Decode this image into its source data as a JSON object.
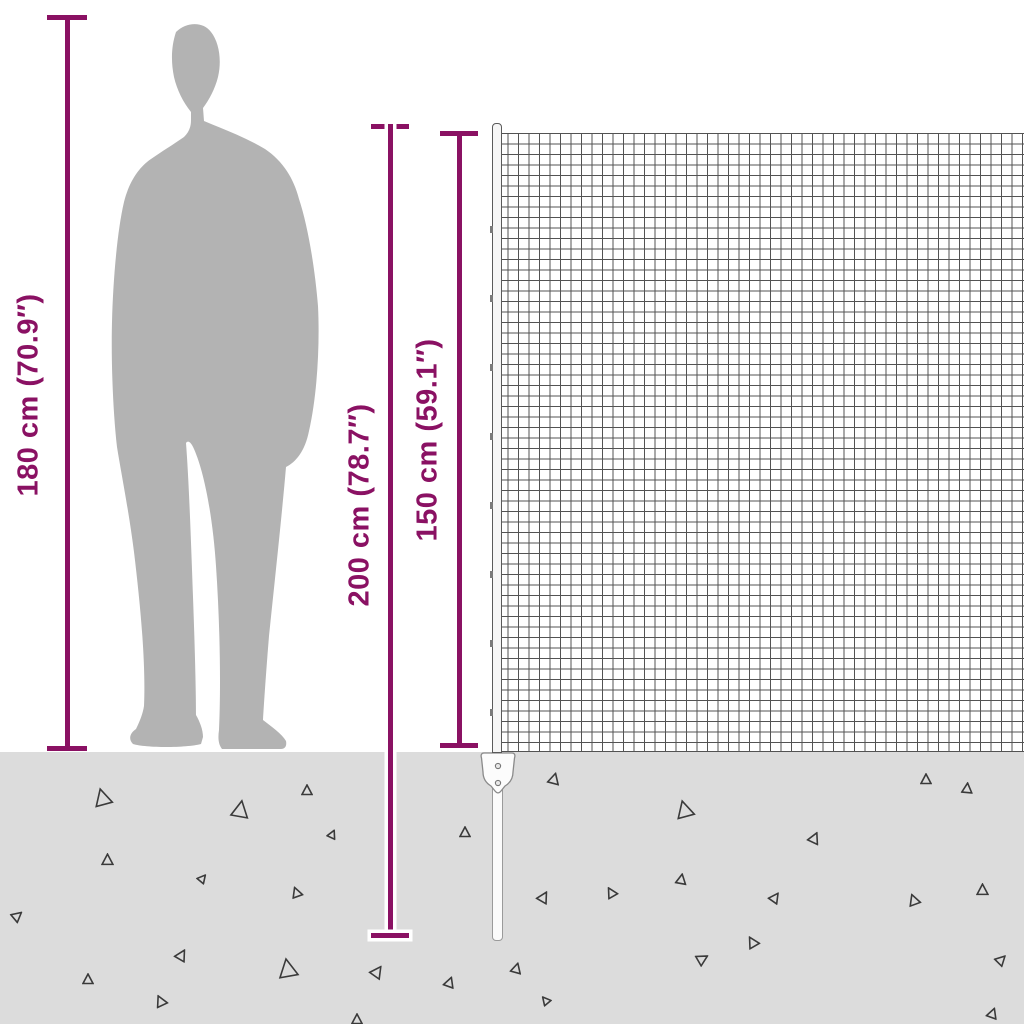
{
  "illustration": {
    "description_labels": {
      "person_height": "180 cm (70.9″)",
      "post_total_height": "200 cm (78.7″)",
      "fence_height_above_ground": "150 cm (59.1″)"
    }
  },
  "measurements": [
    {
      "id": "person-height",
      "label": "180 cm (70.9″)"
    },
    {
      "id": "post-total-height",
      "label": "200 cm (78.7″)"
    },
    {
      "id": "fence-height",
      "label": "150 cm (59.1″)"
    }
  ],
  "colors": {
    "accent": "#8a1163",
    "silhouette": "#b3b3b3",
    "ground": "#dcdcdc",
    "mesh_line": "#2e2e2e",
    "debris": "#3a3a3a"
  },
  "icons": {
    "person": "standing-man-silhouette",
    "fence": "square-mesh-net",
    "debris": "scattered-triangle-gravel-marks"
  },
  "ground": {
    "triangles": [
      [
        103,
        797,
        20,
        -15
      ],
      [
        240,
        809,
        20,
        10
      ],
      [
        307,
        789,
        12,
        0
      ],
      [
        332,
        831,
        10,
        25
      ],
      [
        107,
        859,
        13,
        0
      ],
      [
        202,
        875,
        10,
        40
      ],
      [
        297,
        891,
        12,
        -20
      ],
      [
        16,
        914,
        12,
        50
      ],
      [
        180,
        954,
        13,
        30
      ],
      [
        88,
        978,
        12,
        0
      ],
      [
        288,
        968,
        22,
        -10
      ],
      [
        376,
        971,
        14,
        35
      ],
      [
        161,
        1000,
        13,
        -25
      ],
      [
        449,
        981,
        12,
        20
      ],
      [
        357,
        1018,
        12,
        0
      ],
      [
        553,
        778,
        13,
        15
      ],
      [
        465,
        831,
        12,
        0
      ],
      [
        542,
        896,
        13,
        30
      ],
      [
        612,
        891,
        12,
        -30
      ],
      [
        685,
        809,
        20,
        -15
      ],
      [
        681,
        878,
        12,
        10
      ],
      [
        774,
        896,
        12,
        35
      ],
      [
        813,
        837,
        13,
        25
      ],
      [
        926,
        778,
        12,
        0
      ],
      [
        967,
        787,
        12,
        5
      ],
      [
        914,
        899,
        13,
        -20
      ],
      [
        982,
        889,
        13,
        0
      ],
      [
        753,
        941,
        13,
        -30
      ],
      [
        700,
        957,
        13,
        60
      ],
      [
        516,
        967,
        12,
        15
      ],
      [
        1000,
        958,
        12,
        45
      ],
      [
        546,
        997,
        10,
        -40
      ],
      [
        992,
        1012,
        12,
        20
      ]
    ]
  }
}
